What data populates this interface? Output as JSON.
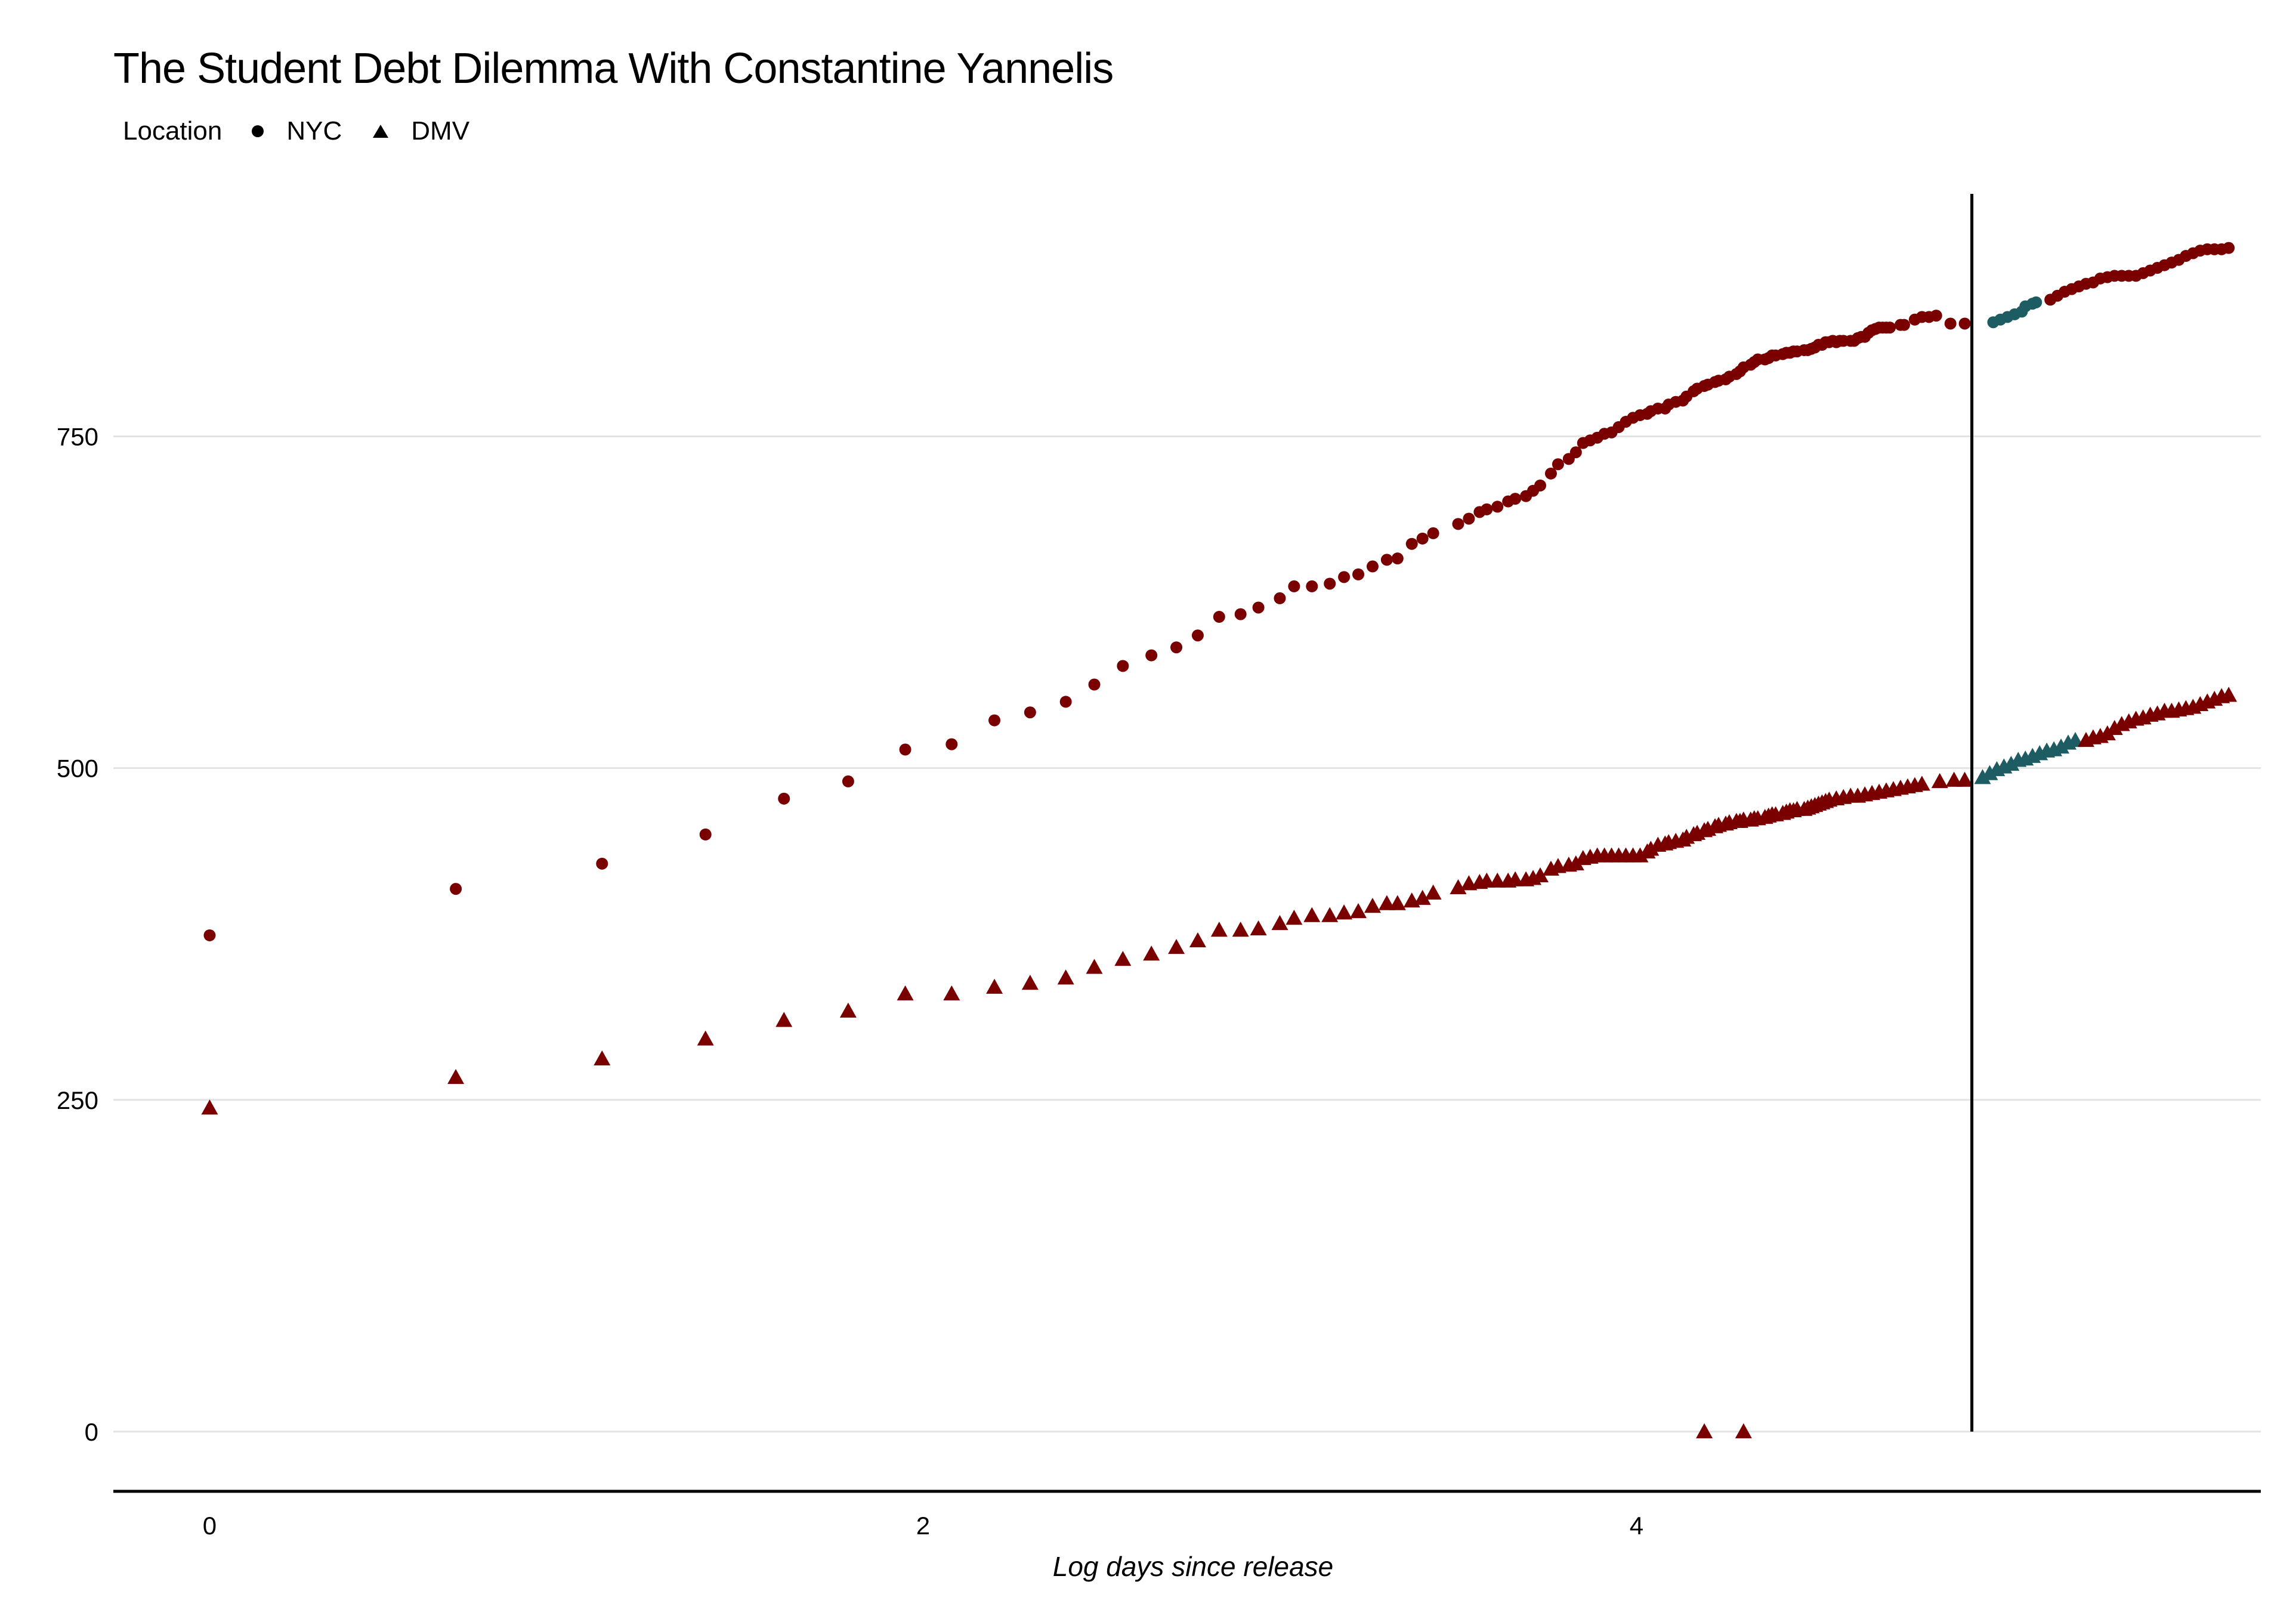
{
  "chart_data": {
    "type": "scatter",
    "title": "The Student Debt Dilemma With Constantine Yannelis",
    "xlabel": "Log days since release",
    "ylabel": "",
    "xlim": [
      -0.27,
      5.75
    ],
    "ylim": [
      -45,
      935
    ],
    "x_ticks": [
      0,
      2,
      4
    ],
    "y_ticks": [
      0,
      250,
      500,
      750
    ],
    "x_tick_labels": [
      "0",
      "2",
      "4"
    ],
    "y_tick_labels": [
      "0",
      "250",
      "500",
      "750"
    ],
    "grid": "horizontal",
    "legend": {
      "title": "Location",
      "position": "top-left",
      "entries": [
        {
          "label": "NYC",
          "shape": "circle"
        },
        {
          "label": "DMV",
          "shape": "triangle"
        }
      ]
    },
    "reference_line": {
      "x": 4.94
    },
    "colors": {
      "default": "#7a0000",
      "highlight": "#1d5c63"
    },
    "series": [
      {
        "name": "NYC",
        "shape": "circle",
        "points": [
          [
            0.0,
            374
          ],
          [
            0.69,
            409
          ],
          [
            1.1,
            428
          ],
          [
            1.39,
            450
          ],
          [
            1.61,
            477
          ],
          [
            1.79,
            490
          ],
          [
            1.95,
            514
          ],
          [
            2.08,
            518
          ],
          [
            2.2,
            536
          ],
          [
            2.3,
            542
          ],
          [
            2.4,
            550
          ],
          [
            2.48,
            563
          ],
          [
            2.56,
            577
          ],
          [
            2.64,
            585
          ],
          [
            2.71,
            591
          ],
          [
            2.77,
            600
          ],
          [
            2.83,
            614
          ],
          [
            2.89,
            616
          ],
          [
            2.94,
            621
          ],
          [
            3.0,
            628
          ],
          [
            3.04,
            637
          ],
          [
            3.09,
            637
          ],
          [
            3.14,
            639
          ],
          [
            3.18,
            644
          ],
          [
            3.22,
            646
          ],
          [
            3.26,
            652
          ],
          [
            3.3,
            657
          ],
          [
            3.33,
            658
          ],
          [
            3.37,
            669
          ],
          [
            3.4,
            673
          ],
          [
            3.43,
            677
          ],
          [
            3.5,
            684
          ],
          [
            3.53,
            688
          ],
          [
            3.56,
            693
          ],
          [
            3.58,
            695
          ],
          [
            3.61,
            697
          ],
          [
            3.64,
            701
          ],
          [
            3.66,
            703
          ],
          [
            3.69,
            705
          ],
          [
            3.71,
            709
          ],
          [
            3.73,
            713
          ],
          [
            3.76,
            722
          ],
          [
            3.78,
            729
          ],
          [
            3.81,
            733
          ],
          [
            3.83,
            738
          ],
          [
            3.85,
            745
          ],
          [
            3.87,
            747
          ],
          [
            3.89,
            749
          ],
          [
            3.91,
            752
          ],
          [
            3.93,
            753
          ],
          [
            3.95,
            757
          ],
          [
            3.97,
            761
          ],
          [
            3.99,
            764
          ],
          [
            4.01,
            766
          ],
          [
            4.03,
            767
          ],
          [
            4.04,
            769
          ],
          [
            4.06,
            771
          ],
          [
            4.08,
            771
          ],
          [
            4.09,
            774
          ],
          [
            4.11,
            776
          ],
          [
            4.13,
            777
          ],
          [
            4.14,
            780
          ],
          [
            4.16,
            784
          ],
          [
            4.17,
            786
          ],
          [
            4.19,
            788
          ],
          [
            4.2,
            789
          ],
          [
            4.22,
            791
          ],
          [
            4.23,
            792
          ],
          [
            4.25,
            793
          ],
          [
            4.26,
            795
          ],
          [
            4.28,
            797
          ],
          [
            4.29,
            799
          ],
          [
            4.3,
            802
          ],
          [
            4.32,
            804
          ],
          [
            4.33,
            806
          ],
          [
            4.34,
            808
          ],
          [
            4.36,
            808
          ],
          [
            4.37,
            809
          ],
          [
            4.38,
            811
          ],
          [
            4.39,
            811
          ],
          [
            4.41,
            812
          ],
          [
            4.42,
            813
          ],
          [
            4.43,
            813
          ],
          [
            4.44,
            814
          ],
          [
            4.45,
            814
          ],
          [
            4.47,
            815
          ],
          [
            4.48,
            815
          ],
          [
            4.49,
            816
          ],
          [
            4.5,
            817
          ],
          [
            4.51,
            819
          ],
          [
            4.52,
            819
          ],
          [
            4.53,
            821
          ],
          [
            4.54,
            821
          ],
          [
            4.55,
            822
          ],
          [
            4.56,
            821
          ],
          [
            4.57,
            822
          ],
          [
            4.58,
            822
          ],
          [
            4.6,
            822
          ],
          [
            4.61,
            822
          ],
          [
            4.62,
            824
          ],
          [
            4.63,
            825
          ],
          [
            4.64,
            825
          ],
          [
            4.65,
            828
          ],
          [
            4.66,
            830
          ],
          [
            4.67,
            831
          ],
          [
            4.68,
            832
          ],
          [
            4.69,
            832
          ],
          [
            4.7,
            832
          ],
          [
            4.71,
            832
          ],
          [
            4.74,
            834
          ],
          [
            4.75,
            834
          ],
          [
            4.78,
            838
          ],
          [
            4.8,
            840
          ],
          [
            4.82,
            840
          ],
          [
            4.84,
            841
          ],
          [
            4.88,
            835
          ],
          [
            4.92,
            835
          ],
          [
            5.0,
            836
          ],
          [
            5.02,
            838
          ],
          [
            5.04,
            840
          ],
          [
            5.06,
            842
          ],
          [
            5.08,
            844
          ],
          [
            5.09,
            848
          ],
          [
            5.11,
            850
          ],
          [
            5.12,
            851
          ],
          [
            5.16,
            853
          ],
          [
            5.18,
            856
          ],
          [
            5.2,
            859
          ],
          [
            5.22,
            861
          ],
          [
            5.24,
            863
          ],
          [
            5.26,
            865
          ],
          [
            5.28,
            866
          ],
          [
            5.3,
            869
          ],
          [
            5.32,
            870
          ],
          [
            5.34,
            871
          ],
          [
            5.36,
            871
          ],
          [
            5.38,
            871
          ],
          [
            5.4,
            871
          ],
          [
            5.42,
            873
          ],
          [
            5.44,
            875
          ],
          [
            5.46,
            877
          ],
          [
            5.48,
            879
          ],
          [
            5.5,
            881
          ],
          [
            5.52,
            883
          ],
          [
            5.54,
            886
          ],
          [
            5.56,
            888
          ],
          [
            5.58,
            890
          ],
          [
            5.6,
            891
          ],
          [
            5.62,
            891
          ],
          [
            5.64,
            891
          ],
          [
            5.66,
            892
          ]
        ],
        "highlight_x_range": [
          4.97,
          5.14
        ]
      },
      {
        "name": "DMV",
        "shape": "triangle",
        "points": [
          [
            0.0,
            244
          ],
          [
            0.69,
            267
          ],
          [
            1.1,
            281
          ],
          [
            1.39,
            296
          ],
          [
            1.61,
            310
          ],
          [
            1.79,
            317
          ],
          [
            1.95,
            330
          ],
          [
            2.08,
            330
          ],
          [
            2.2,
            335
          ],
          [
            2.3,
            338
          ],
          [
            2.4,
            342
          ],
          [
            2.48,
            350
          ],
          [
            2.56,
            356
          ],
          [
            2.64,
            360
          ],
          [
            2.71,
            365
          ],
          [
            2.77,
            370
          ],
          [
            2.83,
            378
          ],
          [
            2.89,
            378
          ],
          [
            2.94,
            379
          ],
          [
            3.0,
            383
          ],
          [
            3.04,
            387
          ],
          [
            3.09,
            389
          ],
          [
            3.14,
            389
          ],
          [
            3.18,
            391
          ],
          [
            3.22,
            392
          ],
          [
            3.26,
            396
          ],
          [
            3.3,
            398
          ],
          [
            3.33,
            398
          ],
          [
            3.37,
            400
          ],
          [
            3.4,
            402
          ],
          [
            3.43,
            406
          ],
          [
            3.5,
            410
          ],
          [
            3.53,
            413
          ],
          [
            3.56,
            414
          ],
          [
            3.58,
            415
          ],
          [
            3.61,
            415
          ],
          [
            3.64,
            415
          ],
          [
            3.66,
            416
          ],
          [
            3.69,
            416
          ],
          [
            3.71,
            417
          ],
          [
            3.73,
            419
          ],
          [
            3.76,
            424
          ],
          [
            3.78,
            426
          ],
          [
            3.81,
            427
          ],
          [
            3.83,
            428
          ],
          [
            3.85,
            432
          ],
          [
            3.87,
            433
          ],
          [
            3.89,
            434
          ],
          [
            3.91,
            434
          ],
          [
            3.93,
            434
          ],
          [
            3.95,
            434
          ],
          [
            3.97,
            434
          ],
          [
            3.99,
            434
          ],
          [
            4.01,
            434
          ],
          [
            4.03,
            437
          ],
          [
            4.04,
            439
          ],
          [
            4.06,
            442
          ],
          [
            4.08,
            443
          ],
          [
            4.09,
            444
          ],
          [
            4.11,
            445
          ],
          [
            4.13,
            446
          ],
          [
            4.14,
            448
          ],
          [
            4.16,
            450
          ],
          [
            4.17,
            451
          ],
          [
            4.19,
            453
          ],
          [
            4.2,
            454
          ],
          [
            4.22,
            456
          ],
          [
            4.23,
            457
          ],
          [
            4.25,
            458
          ],
          [
            4.26,
            459
          ],
          [
            4.28,
            460
          ],
          [
            4.29,
            460
          ],
          [
            4.3,
            461
          ],
          [
            4.32,
            461
          ],
          [
            4.33,
            462
          ],
          [
            4.34,
            462
          ],
          [
            4.36,
            463
          ],
          [
            4.37,
            464
          ],
          [
            4.38,
            465
          ],
          [
            4.39,
            465
          ],
          [
            4.41,
            466
          ],
          [
            4.42,
            467
          ],
          [
            4.43,
            468
          ],
          [
            4.44,
            468
          ],
          [
            4.45,
            469
          ],
          [
            4.47,
            469
          ],
          [
            4.48,
            470
          ],
          [
            4.49,
            471
          ],
          [
            4.5,
            472
          ],
          [
            4.51,
            473
          ],
          [
            4.52,
            474
          ],
          [
            4.53,
            475
          ],
          [
            4.54,
            476
          ],
          [
            4.56,
            477
          ],
          [
            4.58,
            478
          ],
          [
            4.6,
            479
          ],
          [
            4.62,
            479
          ],
          [
            4.64,
            480
          ],
          [
            4.66,
            481
          ],
          [
            4.68,
            482
          ],
          [
            4.7,
            483
          ],
          [
            4.72,
            484
          ],
          [
            4.74,
            485
          ],
          [
            4.76,
            486
          ],
          [
            4.78,
            487
          ],
          [
            4.8,
            488
          ],
          [
            4.85,
            490
          ],
          [
            4.89,
            491
          ],
          [
            4.92,
            491
          ],
          [
            4.97,
            493
          ],
          [
            4.99,
            496
          ],
          [
            5.01,
            499
          ],
          [
            5.03,
            501
          ],
          [
            5.05,
            503
          ],
          [
            5.07,
            506
          ],
          [
            5.09,
            507
          ],
          [
            5.11,
            509
          ],
          [
            5.13,
            511
          ],
          [
            5.15,
            513
          ],
          [
            5.17,
            514
          ],
          [
            5.19,
            516
          ],
          [
            5.21,
            519
          ],
          [
            5.23,
            521
          ],
          [
            5.26,
            521
          ],
          [
            5.28,
            523
          ],
          [
            5.3,
            524
          ],
          [
            5.32,
            526
          ],
          [
            5.34,
            530
          ],
          [
            5.36,
            533
          ],
          [
            5.38,
            535
          ],
          [
            5.4,
            537
          ],
          [
            5.42,
            538
          ],
          [
            5.44,
            540
          ],
          [
            5.46,
            541
          ],
          [
            5.48,
            543
          ],
          [
            5.5,
            543
          ],
          [
            5.52,
            544
          ],
          [
            5.54,
            545
          ],
          [
            5.56,
            546
          ],
          [
            5.58,
            548
          ],
          [
            5.6,
            550
          ],
          [
            5.62,
            552
          ],
          [
            5.64,
            554
          ],
          [
            5.66,
            555
          ],
          [
            4.19,
            0
          ],
          [
            4.3,
            0
          ]
        ],
        "highlight_x_range": [
          4.96,
          5.23
        ]
      }
    ]
  }
}
